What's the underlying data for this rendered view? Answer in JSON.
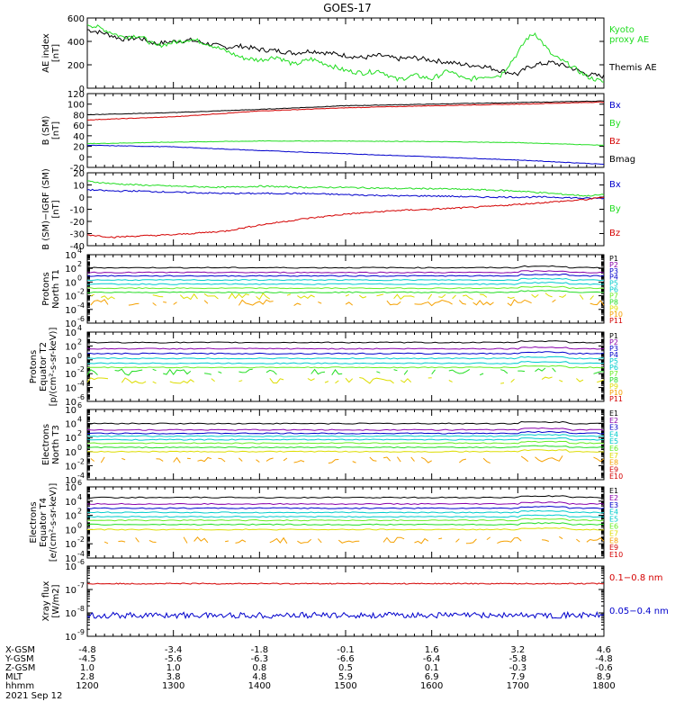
{
  "title": "GOES-17",
  "colors": {
    "black": "#000000",
    "red": "#d40000",
    "green": "#22dd22",
    "blue": "#0000cc",
    "orange": "#f5a000",
    "yellow": "#dddd00",
    "cyan": "#00cccc",
    "lime": "#66ee22",
    "purple": "#8800aa"
  },
  "chart_data": [
    {
      "type": "line",
      "panel": "ae",
      "ylabel": [
        "AE index",
        "[nT]"
      ],
      "ylim": [
        0,
        600
      ],
      "yticks": [
        "0",
        "200",
        "400",
        "600"
      ],
      "x": [
        1200,
        1220,
        1240,
        1260,
        1280,
        1300,
        1320,
        1340,
        1360,
        1380,
        1400,
        1420,
        1440,
        1460,
        1480,
        1500,
        1520,
        1540,
        1560,
        1580,
        1600,
        1620,
        1640,
        1660,
        1680,
        1700,
        1710,
        1720,
        1740,
        1760,
        1780,
        1800
      ],
      "series": [
        {
          "name": "Themis AE",
          "color": "black",
          "values": [
            500,
            470,
            420,
            430,
            380,
            400,
            410,
            380,
            350,
            360,
            330,
            320,
            300,
            320,
            300,
            280,
            260,
            280,
            250,
            260,
            240,
            220,
            200,
            190,
            150,
            120,
            170,
            200,
            220,
            180,
            120,
            100
          ]
        },
        {
          "name": "Kyoto proxy AE",
          "color": "green",
          "values": [
            550,
            500,
            440,
            450,
            360,
            390,
            420,
            380,
            320,
            260,
            240,
            270,
            200,
            250,
            200,
            150,
            130,
            150,
            70,
            110,
            80,
            150,
            70,
            100,
            110,
            300,
            420,
            470,
            280,
            200,
            100,
            50
          ]
        }
      ],
      "legend": [
        {
          "text": "Kyoto\nproxy AE",
          "color": "green"
        },
        {
          "text": "Themis AE",
          "color": "black"
        }
      ]
    },
    {
      "type": "line",
      "panel": "bsm",
      "ylabel": [
        "B (SM)",
        "[nT]"
      ],
      "ylim": [
        -20,
        120
      ],
      "yticks": [
        "-20",
        "0",
        "20",
        "40",
        "60",
        "80",
        "100",
        "120"
      ],
      "x": [
        1200,
        1300,
        1400,
        1500,
        1600,
        1700,
        1800
      ],
      "series": [
        {
          "name": "Bmag",
          "color": "black",
          "values": [
            80,
            84,
            90,
            97,
            100,
            103,
            106
          ]
        },
        {
          "name": "Bz",
          "color": "red",
          "values": [
            70,
            76,
            87,
            93,
            97,
            100,
            104
          ]
        },
        {
          "name": "By",
          "color": "green",
          "values": [
            25,
            28,
            30,
            30,
            29,
            27,
            22
          ]
        },
        {
          "name": "Bx",
          "color": "blue",
          "values": [
            22,
            19,
            12,
            6,
            0,
            -6,
            -14
          ]
        }
      ],
      "legend": [
        {
          "text": "Bx",
          "color": "blue"
        },
        {
          "text": "By",
          "color": "green"
        },
        {
          "text": "Bz",
          "color": "red"
        },
        {
          "text": "Bmag",
          "color": "black"
        }
      ]
    },
    {
      "type": "line",
      "panel": "bigrf",
      "ylabel": [
        "B (SM)−IGRF (SM)",
        "[nT]"
      ],
      "ylim": [
        -40,
        20
      ],
      "yticks": [
        "-40",
        "-30",
        "-20",
        "-10",
        "0",
        "10",
        "20"
      ],
      "x": [
        1200,
        1230,
        1260,
        1300,
        1360,
        1400,
        1450,
        1500,
        1560,
        1600,
        1660,
        1700,
        1740,
        1780,
        1800
      ],
      "series": [
        {
          "name": "By",
          "color": "green",
          "values": [
            13,
            11,
            10,
            9,
            8,
            9,
            8,
            8,
            7,
            7,
            6,
            5,
            3,
            1,
            2
          ]
        },
        {
          "name": "Bx",
          "color": "blue",
          "values": [
            6,
            5,
            5,
            4,
            3,
            3,
            3,
            2,
            1,
            1,
            0,
            0,
            0,
            -1,
            -1
          ]
        },
        {
          "name": "Bz",
          "color": "red",
          "values": [
            -31,
            -33,
            -32,
            -31,
            -28,
            -23,
            -18,
            -14,
            -11,
            -10,
            -8,
            -6,
            -4,
            -2,
            0
          ]
        }
      ],
      "legend": [
        {
          "text": "Bx",
          "color": "blue"
        },
        {
          "text": "By",
          "color": "green"
        },
        {
          "text": "Bz",
          "color": "red"
        }
      ]
    },
    {
      "type": "line",
      "panel": "protons_t1",
      "ylabel": [
        "Protons",
        "North T1"
      ],
      "ylim": [
        -6,
        4
      ],
      "yticks": [
        "10^-6",
        "10^-4",
        "10^-2",
        "10^0",
        "10^2",
        "10^4"
      ],
      "series_levels": [
        2.1,
        1.4,
        0.9,
        0.3,
        -0.3,
        -0.9,
        -1.5,
        -2.1,
        -3.0
      ],
      "series_names": [
        "P1",
        "P2",
        "P3",
        "P4",
        "P5",
        "P6",
        "P7",
        "P8",
        "P9",
        "P10",
        "P11"
      ],
      "series_colors": [
        "black",
        "purple",
        "blue",
        "blue",
        "cyan",
        "cyan",
        "lime",
        "green",
        "yellow",
        "orange",
        "red"
      ]
    },
    {
      "type": "line",
      "panel": "protons_t2",
      "ylabel": [
        "Protons",
        "Equator T2",
        "[p/(cm²-s-sr-keV)]"
      ],
      "ylim": [
        -6,
        4
      ],
      "yticks": [
        "10^-6",
        "10^-4",
        "10^-2",
        "10^0",
        "10^2",
        "10^4"
      ],
      "series_levels": [
        2.5,
        1.6,
        0.9,
        0.2,
        -0.5,
        -1.1,
        -1.8,
        -3.0
      ],
      "series_names": [
        "P1",
        "P2",
        "P3",
        "P4",
        "P5",
        "P6",
        "P7",
        "P8",
        "P9",
        "P10",
        "P11"
      ],
      "series_colors": [
        "black",
        "purple",
        "blue",
        "blue",
        "cyan",
        "cyan",
        "lime",
        "green",
        "yellow",
        "orange",
        "red"
      ]
    },
    {
      "type": "line",
      "panel": "electrons_t3",
      "ylabel": [
        "Electrons",
        "North T3"
      ],
      "ylim": [
        -4,
        6
      ],
      "yticks": [
        "10^-4",
        "10^-2",
        "10^0",
        "10^2",
        "10^4",
        "10^6"
      ],
      "series_levels": [
        4.0,
        3.1,
        2.6,
        2.2,
        1.7,
        1.2,
        0.6,
        0.0,
        -1.2
      ],
      "series_names": [
        "E1",
        "E2",
        "E3",
        "E4",
        "E5",
        "E6",
        "E7",
        "E8",
        "E9",
        "E10"
      ],
      "series_colors": [
        "black",
        "purple",
        "blue",
        "cyan",
        "cyan",
        "lime",
        "yellow",
        "orange",
        "red",
        "red"
      ]
    },
    {
      "type": "line",
      "panel": "electrons_t4",
      "ylabel": [
        "Electrons",
        "Equator T4",
        "[e/(cm²-s-sr-keV)]"
      ],
      "ylim": [
        -4,
        6
      ],
      "yticks": [
        "10^-4",
        "10^-2",
        "10^0",
        "10^2",
        "10^4",
        "10^6"
      ],
      "series_levels": [
        4.5,
        3.6,
        3.0,
        2.4,
        1.8,
        1.3,
        0.7,
        0.0,
        -1.5
      ],
      "series_names": [
        "E1",
        "E2",
        "E3",
        "E4",
        "E5",
        "E6",
        "E7",
        "E8",
        "E9",
        "E10"
      ],
      "series_colors": [
        "black",
        "purple",
        "blue",
        "cyan",
        "cyan",
        "lime",
        "yellow",
        "orange",
        "red",
        "red"
      ]
    },
    {
      "type": "line",
      "panel": "xray",
      "ylabel": [
        "Xray flux",
        "[W/m2]"
      ],
      "ylim": [
        -9,
        -6
      ],
      "yticks": [
        "10^-9",
        "10^-8",
        "10^-7",
        "10^-6"
      ],
      "series": [
        {
          "name": "0.1−0.8 nm",
          "color": "red",
          "level": -6.75
        },
        {
          "name": "0.05−0.4 nm",
          "color": "blue",
          "level": -8.1
        }
      ],
      "legend": [
        {
          "text": "0.1−0.8 nm",
          "color": "red"
        },
        {
          "text": "0.05−0.4 nm",
          "color": "blue"
        }
      ]
    }
  ],
  "x_axis": {
    "row_labels": [
      "X-GSM",
      "Y-GSM",
      "Z-GSM",
      "MLT",
      "hhmm"
    ],
    "date": "2021 Sep 12",
    "ticks": [
      [
        "-4.8",
        "-4.5",
        "1.0",
        "2.8",
        "1200"
      ],
      [
        "-3.4",
        "-5.6",
        "1.0",
        "3.8",
        "1300"
      ],
      [
        "-1.8",
        "-6.3",
        "0.8",
        "4.8",
        "1400"
      ],
      [
        "-0.1",
        "-6.6",
        "0.5",
        "5.9",
        "1500"
      ],
      [
        "1.6",
        "-6.4",
        "0.1",
        "6.9",
        "1600"
      ],
      [
        "3.2",
        "-5.8",
        "-0.3",
        "7.9",
        "1700"
      ],
      [
        "4.6",
        "-4.8",
        "-0.6",
        "8.9",
        "1800"
      ]
    ]
  }
}
